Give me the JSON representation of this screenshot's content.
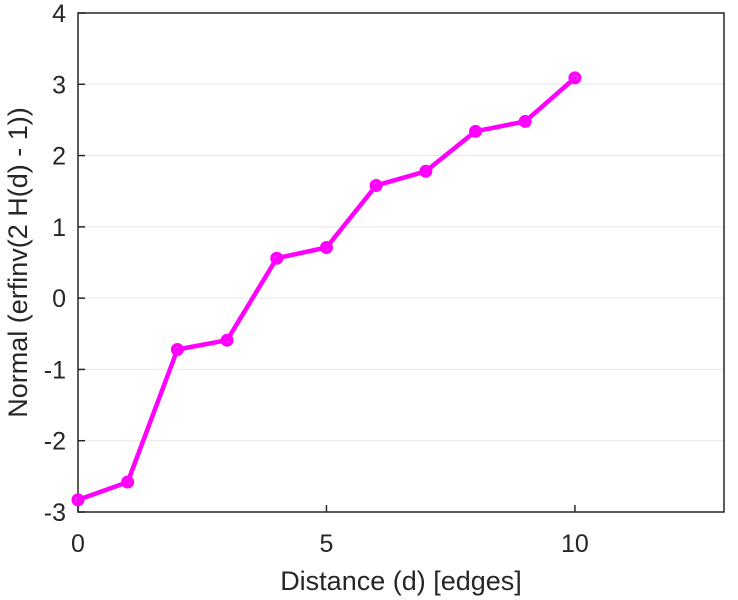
{
  "chart_data": {
    "type": "line",
    "title": "",
    "xlabel": "Distance (d) [edges]",
    "ylabel": "Normal (erfinv(2 H(d) - 1))",
    "xlim": [
      0,
      13
    ],
    "ylim": [
      -3,
      4
    ],
    "xticks": [
      0,
      5,
      10
    ],
    "yticks": [
      -3,
      -2,
      -1,
      0,
      1,
      2,
      3,
      4
    ],
    "xtick_labels": [
      "0",
      "5",
      "10"
    ],
    "ytick_labels": [
      "-3",
      "-2",
      "-1",
      "0",
      "1",
      "2",
      "3",
      "4"
    ],
    "grid": "horizontal",
    "legend": "none",
    "series": [
      {
        "color": "#ff00ff",
        "marker": "circle",
        "x": [
          0,
          1,
          2,
          3,
          4,
          5,
          6,
          7,
          8,
          9,
          10
        ],
        "y": [
          -2.83,
          -2.58,
          -0.72,
          -0.59,
          0.56,
          0.71,
          1.58,
          1.78,
          2.34,
          2.48,
          3.09
        ]
      }
    ]
  }
}
